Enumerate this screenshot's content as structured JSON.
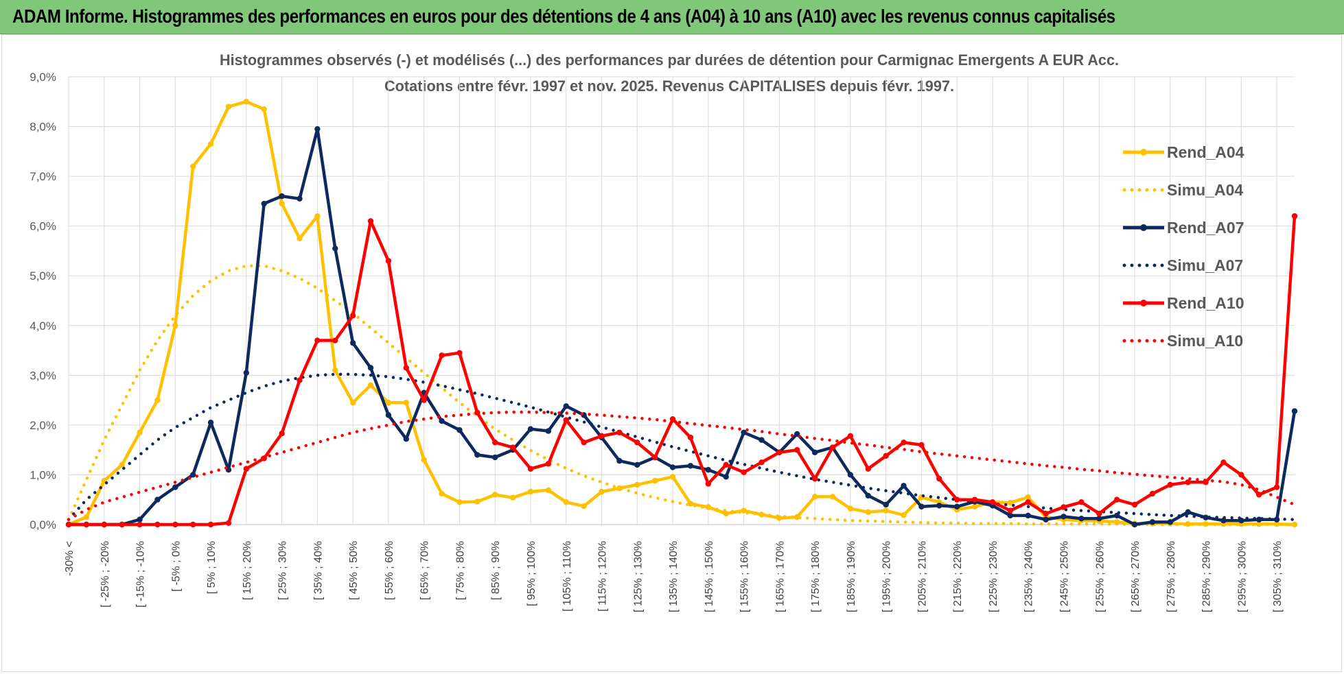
{
  "banner": {
    "title": "ADAM Informe. Histogrammes des performances en euros pour des détentions de 4 ans (A04) à 10 ans (A10) avec les revenus connus capitalisés"
  },
  "colors": {
    "banner_bg": "#80c77a",
    "A04": "#ffc000",
    "A07": "#0d2a5e",
    "A10": "#ff0000",
    "grid": "#d9d9d9"
  },
  "chart_data": {
    "type": "line",
    "title": [
      "Histogrammes observés (-) et modélisés (...) des performances par durées de détention pour Carmignac Emergents A EUR Acc.",
      "Cotations entre févr. 1997 et nov. 2025. Revenus CAPITALISES depuis févr. 1997."
    ],
    "xlabel": "",
    "ylabel": "",
    "ylim": [
      0,
      9
    ],
    "yticks": [
      "0,0%",
      "1,0%",
      "2,0%",
      "3,0%",
      "4,0%",
      "5,0%",
      "6,0%",
      "7,0%",
      "8,0%",
      "9,0%"
    ],
    "xtick_labels": [
      "-30% <",
      "[ -25% ; -20%",
      "[ -15% ; -10%",
      "[ -5% ; 0%",
      "[ 5% ; 10%",
      "[ 15% ; 20%",
      "[ 25% ; 30%",
      "[ 35% ; 40%",
      "[ 45% ; 50%",
      "[ 55% ; 60%",
      "[ 65% ; 70%",
      "[ 75% ; 80%",
      "[ 85% ; 90%",
      "[ 95% ; 100%",
      "[ 105% ; 110%",
      "[ 115% ; 120%",
      "[ 125% ; 130%",
      "[ 135% ; 140%",
      "[ 145% ; 150%",
      "[ 155% ; 160%",
      "[ 165% ; 170%",
      "[ 175% ; 180%",
      "[ 185% ; 190%",
      "[ 195% ; 200%",
      "[ 205% ; 210%",
      "[ 215% ; 220%",
      "[ 225% ; 230%",
      "[ 235% ; 240%",
      "[ 245% ; 250%",
      "[ 255% ; 260%",
      "[ 265% ; 270%",
      "[ 275% ; 280%",
      "[ 285% ; 290%",
      "[ 295% ; 300%",
      "[ 305% ; 310%"
    ],
    "n_points": 70,
    "series": [
      {
        "name": "Rend_A04",
        "color": "#ffc000",
        "style": "solid",
        "values": [
          0,
          0.15,
          0.88,
          1.2,
          1.85,
          2.5,
          4.0,
          7.2,
          7.65,
          8.4,
          8.5,
          8.35,
          6.45,
          5.75,
          6.2,
          3.1,
          2.45,
          2.8,
          2.45,
          2.45,
          1.3,
          0.62,
          0.45,
          0.46,
          0.6,
          0.54,
          0.66,
          0.69,
          0.45,
          0.37,
          0.66,
          0.73,
          0.8,
          0.88,
          0.96,
          0.42,
          0.35,
          0.22,
          0.28,
          0.2,
          0.13,
          0.15,
          0.56,
          0.56,
          0.32,
          0.25,
          0.28,
          0.19,
          0.55,
          0.45,
          0.3,
          0.36,
          0.45,
          0.44,
          0.55,
          0.15,
          0.1,
          0.08,
          0.07,
          0.05,
          0.02,
          0.02,
          0.02,
          0.01,
          0.01,
          0.01,
          0.01,
          0.01,
          0.01,
          0.0
        ]
      },
      {
        "name": "Simu_A04",
        "color": "#ffc000",
        "style": "dotted",
        "values": [
          0.1,
          0.9,
          1.7,
          2.4,
          3.1,
          3.7,
          4.2,
          4.6,
          4.9,
          5.1,
          5.2,
          5.2,
          5.1,
          4.95,
          4.75,
          4.5,
          4.25,
          3.95,
          3.65,
          3.35,
          3.05,
          2.75,
          2.45,
          2.18,
          1.92,
          1.7,
          1.49,
          1.3,
          1.13,
          0.98,
          0.85,
          0.73,
          0.63,
          0.54,
          0.46,
          0.39,
          0.33,
          0.28,
          0.24,
          0.2,
          0.17,
          0.14,
          0.12,
          0.1,
          0.08,
          0.07,
          0.06,
          0.05,
          0.04,
          0.03,
          0.03,
          0.02,
          0.02,
          0.02,
          0.01,
          0.01,
          0.01,
          0.01,
          0.01,
          0.01,
          0.0,
          0.0,
          0.0,
          0.0,
          0.0,
          0.0,
          0.0,
          0.0,
          0.0,
          0.0
        ]
      },
      {
        "name": "Rend_A07",
        "color": "#0d2a5e",
        "style": "solid",
        "values": [
          0,
          0,
          0,
          0,
          0.1,
          0.5,
          0.75,
          1.0,
          2.05,
          1.1,
          3.05,
          6.45,
          6.6,
          6.55,
          7.95,
          5.55,
          3.65,
          3.15,
          2.2,
          1.72,
          2.65,
          2.08,
          1.9,
          1.4,
          1.35,
          1.5,
          1.92,
          1.88,
          2.38,
          2.2,
          1.75,
          1.28,
          1.2,
          1.35,
          1.15,
          1.18,
          1.1,
          0.96,
          1.85,
          1.7,
          1.45,
          1.82,
          1.45,
          1.55,
          1.0,
          0.58,
          0.4,
          0.78,
          0.36,
          0.38,
          0.36,
          0.46,
          0.38,
          0.18,
          0.18,
          0.1,
          0.16,
          0.12,
          0.12,
          0.18,
          0.0,
          0.05,
          0.05,
          0.25,
          0.14,
          0.08,
          0.08,
          0.1,
          0.1,
          2.28
        ]
      },
      {
        "name": "Simu_A07",
        "color": "#0d2a5e",
        "style": "dotted",
        "values": [
          0.1,
          0.5,
          0.8,
          1.1,
          1.4,
          1.7,
          1.95,
          2.15,
          2.35,
          2.5,
          2.65,
          2.78,
          2.88,
          2.95,
          3.0,
          3.02,
          3.02,
          3.0,
          2.97,
          2.92,
          2.86,
          2.79,
          2.71,
          2.63,
          2.54,
          2.45,
          2.36,
          2.26,
          2.16,
          2.06,
          1.96,
          1.86,
          1.76,
          1.66,
          1.56,
          1.47,
          1.38,
          1.29,
          1.21,
          1.13,
          1.05,
          0.98,
          0.91,
          0.85,
          0.79,
          0.73,
          0.68,
          0.63,
          0.58,
          0.54,
          0.5,
          0.46,
          0.42,
          0.39,
          0.36,
          0.33,
          0.3,
          0.28,
          0.26,
          0.24,
          0.22,
          0.2,
          0.18,
          0.17,
          0.15,
          0.14,
          0.13,
          0.12,
          0.11,
          0.1
        ]
      },
      {
        "name": "Rend_A10",
        "color": "#ff0000",
        "style": "solid",
        "values": [
          0,
          0,
          0,
          0,
          0,
          0,
          0,
          0,
          0,
          0.03,
          1.12,
          1.33,
          1.83,
          2.9,
          3.7,
          3.7,
          4.2,
          6.1,
          5.3,
          3.15,
          2.5,
          3.4,
          3.45,
          2.25,
          1.65,
          1.55,
          1.12,
          1.22,
          2.1,
          1.65,
          1.78,
          1.85,
          1.65,
          1.35,
          2.12,
          1.75,
          0.82,
          1.2,
          1.05,
          1.25,
          1.45,
          1.5,
          0.92,
          1.55,
          1.78,
          1.12,
          1.38,
          1.65,
          1.6,
          0.92,
          0.5,
          0.5,
          0.45,
          0.28,
          0.45,
          0.22,
          0.35,
          0.45,
          0.22,
          0.5,
          0.4,
          0.62,
          0.8,
          0.85,
          0.85,
          1.25,
          1.0,
          0.6,
          0.75,
          6.2
        ]
      },
      {
        "name": "Simu_A10",
        "color": "#ff0000",
        "style": "dotted",
        "values": [
          0.1,
          0.3,
          0.45,
          0.55,
          0.65,
          0.75,
          0.85,
          0.95,
          1.05,
          1.15,
          1.25,
          1.35,
          1.45,
          1.55,
          1.65,
          1.75,
          1.85,
          1.93,
          2.0,
          2.07,
          2.12,
          2.17,
          2.2,
          2.23,
          2.25,
          2.26,
          2.26,
          2.25,
          2.24,
          2.22,
          2.2,
          2.17,
          2.14,
          2.11,
          2.07,
          2.03,
          1.99,
          1.95,
          1.91,
          1.87,
          1.82,
          1.78,
          1.73,
          1.69,
          1.64,
          1.6,
          1.55,
          1.51,
          1.46,
          1.42,
          1.38,
          1.34,
          1.3,
          1.26,
          1.22,
          1.18,
          1.15,
          1.11,
          1.08,
          1.04,
          1.01,
          0.98,
          0.95,
          0.92,
          0.89,
          0.86,
          0.8,
          0.7,
          0.55,
          0.4
        ]
      }
    ],
    "legend_position": "right"
  }
}
